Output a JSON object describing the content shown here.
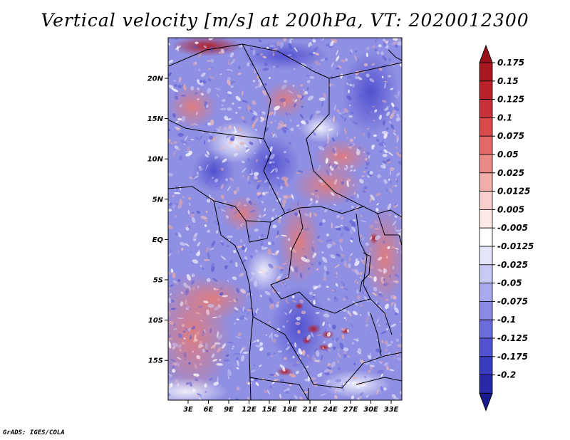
{
  "title": "Vertical velocity [m/s] at 200hPa, VT: 2020012300",
  "footer": "GrADS: IGES/COLA",
  "map": {
    "lat_labels": [
      "20N",
      "15N",
      "10N",
      "5N",
      "EQ",
      "5S",
      "10S",
      "15S"
    ],
    "lon_labels": [
      "3E",
      "6E",
      "9E",
      "12E",
      "15E",
      "18E",
      "21E",
      "24E",
      "27E",
      "30E",
      "33E"
    ]
  },
  "colorbar": {
    "levels": [
      {
        "label": "0.175",
        "color": "#a81820"
      },
      {
        "label": "0.15",
        "color": "#b82228"
      },
      {
        "label": "0.125",
        "color": "#c8303a"
      },
      {
        "label": "0.1",
        "color": "#d84a4c"
      },
      {
        "label": "0.075",
        "color": "#e26a68"
      },
      {
        "label": "0.05",
        "color": "#ea8a86"
      },
      {
        "label": "0.025",
        "color": "#f2aeaa"
      },
      {
        "label": "0.0125",
        "color": "#f8cfcc"
      },
      {
        "label": "0.005",
        "color": "#fce9e8"
      },
      {
        "label": "-0.005",
        "color": "#ffffff"
      },
      {
        "label": "-0.0125",
        "color": "#e6e6fb"
      },
      {
        "label": "-0.025",
        "color": "#c9c9f5"
      },
      {
        "label": "-0.05",
        "color": "#a9a9ee"
      },
      {
        "label": "-0.075",
        "color": "#8a8ae6"
      },
      {
        "label": "-0.1",
        "color": "#6c6cdd"
      },
      {
        "label": "-0.125",
        "color": "#5252d0"
      },
      {
        "label": "-0.175",
        "color": "#3b3bc0"
      },
      {
        "label": "-0.2",
        "color": "#2828a8"
      }
    ],
    "top_color": "#9a1018",
    "bottom_color": "#1a1a90"
  }
}
